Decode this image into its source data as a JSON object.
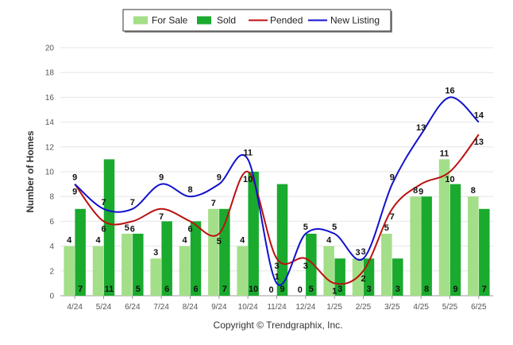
{
  "chart_data": {
    "type": "bar",
    "ylabel": "Number of Homes",
    "ylim": [
      0,
      20
    ],
    "yticks": [
      "0",
      "2",
      "4",
      "6",
      "8",
      "10",
      "12",
      "14",
      "16",
      "18",
      "20"
    ],
    "categories": [
      "4/24",
      "5/24",
      "6/24",
      "7/24",
      "8/24",
      "9/24",
      "10/24",
      "11/24",
      "12/24",
      "1/25",
      "2/25",
      "3/25",
      "4/25",
      "5/25",
      "6/25"
    ],
    "legend_position": "top-center",
    "grid": true,
    "bar_series": [
      {
        "name": "For Sale",
        "color": "#a3df88",
        "values": [
          4,
          4,
          5,
          3,
          4,
          7,
          4,
          0,
          0,
          4,
          3,
          5,
          8,
          11,
          8
        ],
        "value_labels": [
          "4",
          "4",
          "5",
          "3",
          "4",
          "7",
          "4",
          "0",
          "0",
          "4",
          "3",
          "5",
          "8",
          "11",
          "8"
        ]
      },
      {
        "name": "Sold",
        "color": "#1aaa2e",
        "values": [
          7,
          11,
          5,
          6,
          6,
          7,
          10,
          9,
          5,
          3,
          3,
          3,
          8,
          9,
          7
        ],
        "value_labels": [
          "7",
          "11",
          "5",
          "6",
          "6",
          "7",
          "10",
          "9",
          "5",
          "3",
          "3",
          "3",
          "8",
          "9",
          "7"
        ]
      }
    ],
    "line_series": [
      {
        "name": "Pended",
        "color": "#bb1111",
        "values": [
          9,
          6,
          6,
          7,
          6,
          5,
          10,
          3,
          3,
          1,
          2,
          7,
          9,
          10,
          13
        ],
        "value_labels": [
          "9",
          "6",
          "6",
          "7",
          "6",
          "5",
          "10",
          "3",
          "3",
          "1",
          "2",
          "7",
          "9",
          "10",
          "13"
        ]
      },
      {
        "name": "New Listing",
        "color": "#1111cc",
        "values": [
          9,
          7,
          7,
          9,
          8,
          9,
          11,
          1,
          5,
          5,
          3,
          9,
          13,
          16,
          14
        ],
        "value_labels": [
          "9",
          "7",
          "7",
          "9",
          "8",
          "9",
          "11",
          "1",
          "5",
          "5",
          "3",
          "9",
          "13",
          "16",
          "14"
        ]
      }
    ],
    "credit": "Copyright © Trendgraphix, Inc."
  }
}
